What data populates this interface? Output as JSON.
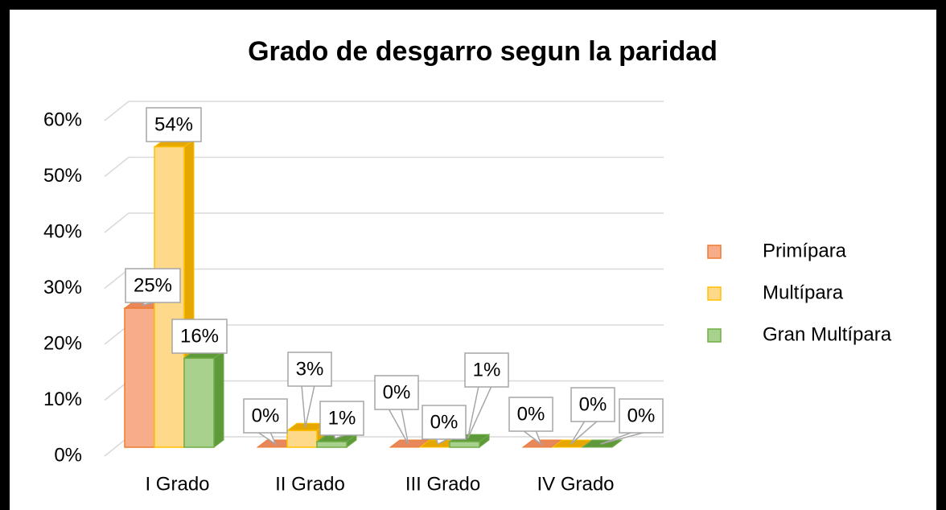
{
  "chart_data": {
    "type": "bar3d",
    "title": "Grado de desgarro segun la paridad",
    "categories": [
      "I Grado",
      "II Grado",
      "III Grado",
      "IV Grado"
    ],
    "series": [
      {
        "name": "Primípara",
        "color": "#f8ad8a",
        "values": [
          25,
          0,
          0,
          0
        ],
        "value_labels": [
          "25%",
          "0%",
          "0%",
          "0%"
        ]
      },
      {
        "name": "Multípara",
        "color": "#ffd98a",
        "values": [
          54,
          3,
          0,
          0
        ],
        "value_labels": [
          "54%",
          "3%",
          "0%",
          "0%"
        ]
      },
      {
        "name": "Gran Multípara",
        "color": "#a9d18e",
        "values": [
          16,
          1,
          1,
          0
        ],
        "value_labels": [
          "16%",
          "1%",
          "1%",
          "0%"
        ]
      }
    ],
    "ylim": [
      0,
      60
    ],
    "yticks": [
      {
        "value": 0,
        "label": "0%"
      },
      {
        "value": 10,
        "label": "10%"
      },
      {
        "value": 20,
        "label": "20%"
      },
      {
        "value": 30,
        "label": "30%"
      },
      {
        "value": 40,
        "label": "40%"
      },
      {
        "value": 50,
        "label": "50%"
      },
      {
        "value": 60,
        "label": "60%"
      }
    ],
    "grid": true,
    "legend": "right"
  }
}
